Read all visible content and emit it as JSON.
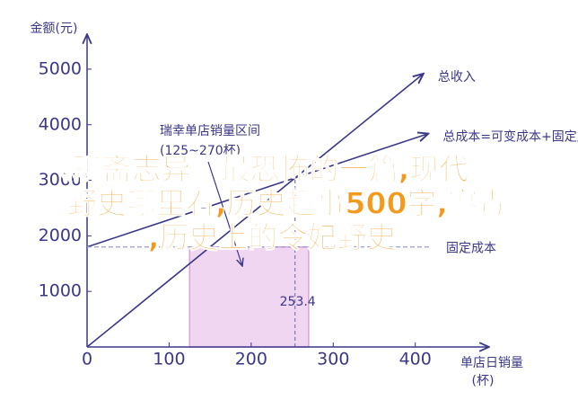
{
  "chart_data": {
    "type": "line",
    "y_label": "金额(元)",
    "x_label": [
      "单店日销量",
      "(杯)"
    ],
    "xlim": [
      0,
      490
    ],
    "ylim": [
      0,
      5630
    ],
    "xticks": [
      0,
      100,
      200,
      300,
      400
    ],
    "yticks": [
      1000,
      2000,
      3000,
      4000,
      5000
    ],
    "series": [
      {
        "name": "总收入",
        "color": "#3b3888",
        "x": [
          0,
          410
        ],
        "values": [
          0,
          4920
        ],
        "dashed": false
      },
      {
        "name": "总成本=可变成本+固定成本",
        "color": "#3b3888",
        "x": [
          0,
          416
        ],
        "values": [
          1800,
          3840
        ],
        "dashed": false
      },
      {
        "name": "固定成本",
        "color": "#9c99c8",
        "x": [
          0,
          420
        ],
        "values": [
          1800,
          1800
        ],
        "dashed": true
      }
    ],
    "range": {
      "label": [
        "瑞幸单店销量区间",
        "(125~270杯)"
      ],
      "x": [
        125,
        270
      ],
      "color": "#f0d6f0",
      "edge": "#d9a3d9"
    },
    "marker": {
      "value": 253.4,
      "color": "#7b78b8"
    },
    "overlay": [
      "《聊斋志异》最恐怖的一篇,现代",
      "野史哪里看,历史趣事500字,寥毒",
      ",历史上的令妃野史"
    ]
  }
}
